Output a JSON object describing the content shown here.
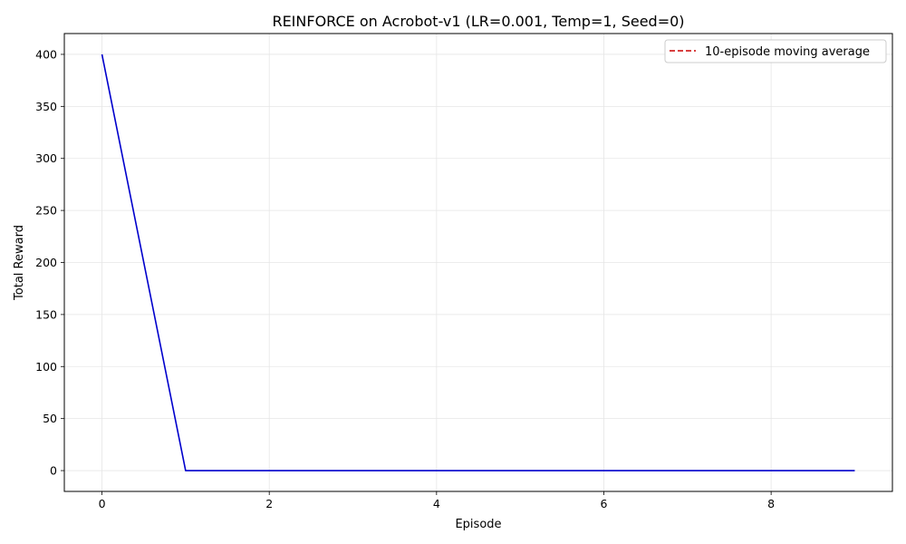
{
  "chart_data": {
    "type": "line",
    "title": "REINFORCE on Acrobot-v1 (LR=0.001, Temp=1, Seed=0)",
    "xlabel": "Episode",
    "ylabel": "Total Reward",
    "xlim": [
      -0.45,
      9.45
    ],
    "ylim": [
      -20,
      420
    ],
    "xticks": [
      0,
      2,
      4,
      6,
      8
    ],
    "yticks": [
      0,
      50,
      100,
      150,
      200,
      250,
      300,
      350,
      400
    ],
    "grid": true,
    "legend_position": "top-right",
    "series": [
      {
        "role": "reward",
        "color": "#0000cc",
        "style": "solid",
        "x": [
          0,
          1,
          2,
          3,
          4,
          5,
          6,
          7,
          8,
          9
        ],
        "y": [
          400,
          0,
          0,
          0,
          0,
          0,
          0,
          0,
          0,
          0
        ]
      },
      {
        "name": "10-episode moving average",
        "color": "#cc0000",
        "style": "dashed",
        "x": [],
        "y": []
      }
    ]
  }
}
